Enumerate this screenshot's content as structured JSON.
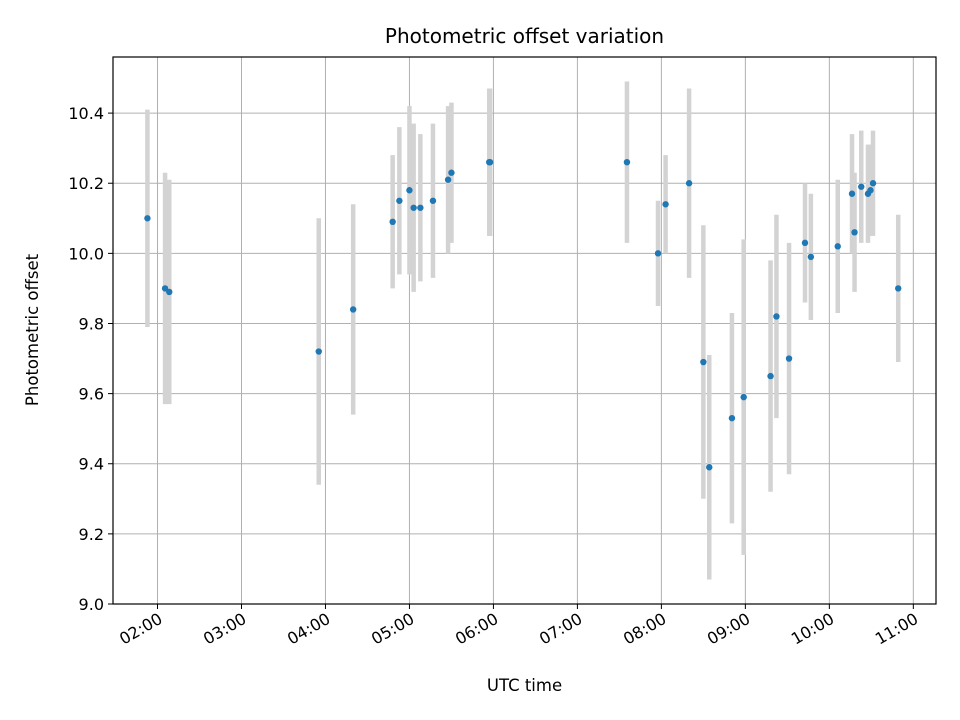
{
  "chart_data": {
    "type": "scatter",
    "title": "Photometric offset variation",
    "xlabel": "UTC time",
    "ylabel": "Photometric offset",
    "x_unit": "hours UTC",
    "xlim": [
      1.47,
      11.27
    ],
    "ylim": [
      9.0,
      10.56
    ],
    "x_ticks": [
      {
        "value": 2,
        "label": "02:00"
      },
      {
        "value": 3,
        "label": "03:00"
      },
      {
        "value": 4,
        "label": "04:00"
      },
      {
        "value": 5,
        "label": "05:00"
      },
      {
        "value": 6,
        "label": "06:00"
      },
      {
        "value": 7,
        "label": "07:00"
      },
      {
        "value": 8,
        "label": "08:00"
      },
      {
        "value": 9,
        "label": "09:00"
      },
      {
        "value": 10,
        "label": "10:00"
      },
      {
        "value": 11,
        "label": "11:00"
      }
    ],
    "y_ticks": [
      {
        "value": 9.0,
        "label": "9.0"
      },
      {
        "value": 9.2,
        "label": "9.2"
      },
      {
        "value": 9.4,
        "label": "9.4"
      },
      {
        "value": 9.6,
        "label": "9.6"
      },
      {
        "value": 9.8,
        "label": "9.8"
      },
      {
        "value": 10.0,
        "label": "10.0"
      },
      {
        "value": 10.2,
        "label": "10.2"
      },
      {
        "value": 10.4,
        "label": "10.4"
      }
    ],
    "grid": true,
    "point_color": "#1f77b4",
    "errorbar_color": "#d3d3d3",
    "points": [
      {
        "x": 1.88,
        "y": 10.1,
        "err": 0.31
      },
      {
        "x": 2.09,
        "y": 9.9,
        "err": 0.33
      },
      {
        "x": 2.14,
        "y": 9.89,
        "err": 0.32
      },
      {
        "x": 3.92,
        "y": 9.72,
        "err": 0.38
      },
      {
        "x": 4.33,
        "y": 9.84,
        "err": 0.3
      },
      {
        "x": 4.8,
        "y": 10.09,
        "err": 0.19
      },
      {
        "x": 4.88,
        "y": 10.15,
        "err": 0.21
      },
      {
        "x": 5.0,
        "y": 10.18,
        "err": 0.24
      },
      {
        "x": 5.05,
        "y": 10.13,
        "err": 0.24
      },
      {
        "x": 5.13,
        "y": 10.13,
        "err": 0.21
      },
      {
        "x": 5.28,
        "y": 10.15,
        "err": 0.22
      },
      {
        "x": 5.46,
        "y": 10.21,
        "err": 0.21
      },
      {
        "x": 5.5,
        "y": 10.23,
        "err": 0.2
      },
      {
        "x": 5.95,
        "y": 10.26,
        "err": 0.21
      },
      {
        "x": 5.96,
        "y": 10.26,
        "err": 0.21
      },
      {
        "x": 7.59,
        "y": 10.26,
        "err": 0.23
      },
      {
        "x": 7.96,
        "y": 10.0,
        "err": 0.15
      },
      {
        "x": 8.05,
        "y": 10.14,
        "err": 0.14
      },
      {
        "x": 8.33,
        "y": 10.2,
        "err": 0.27
      },
      {
        "x": 8.5,
        "y": 9.69,
        "err": 0.39
      },
      {
        "x": 8.57,
        "y": 9.39,
        "err": 0.32
      },
      {
        "x": 8.84,
        "y": 9.53,
        "err": 0.3
      },
      {
        "x": 8.98,
        "y": 9.59,
        "err": 0.45
      },
      {
        "x": 9.3,
        "y": 9.65,
        "err": 0.33
      },
      {
        "x": 9.37,
        "y": 9.82,
        "err": 0.29
      },
      {
        "x": 9.52,
        "y": 9.7,
        "err": 0.33
      },
      {
        "x": 9.71,
        "y": 10.03,
        "err": 0.17
      },
      {
        "x": 9.78,
        "y": 9.99,
        "err": 0.18
      },
      {
        "x": 10.1,
        "y": 10.02,
        "err": 0.19
      },
      {
        "x": 10.27,
        "y": 10.17,
        "err": 0.17
      },
      {
        "x": 10.3,
        "y": 10.06,
        "err": 0.17
      },
      {
        "x": 10.38,
        "y": 10.19,
        "err": 0.16
      },
      {
        "x": 10.46,
        "y": 10.17,
        "err": 0.14
      },
      {
        "x": 10.49,
        "y": 10.18,
        "err": 0.13
      },
      {
        "x": 10.52,
        "y": 10.2,
        "err": 0.15
      },
      {
        "x": 10.82,
        "y": 9.9,
        "err": 0.21
      }
    ]
  }
}
